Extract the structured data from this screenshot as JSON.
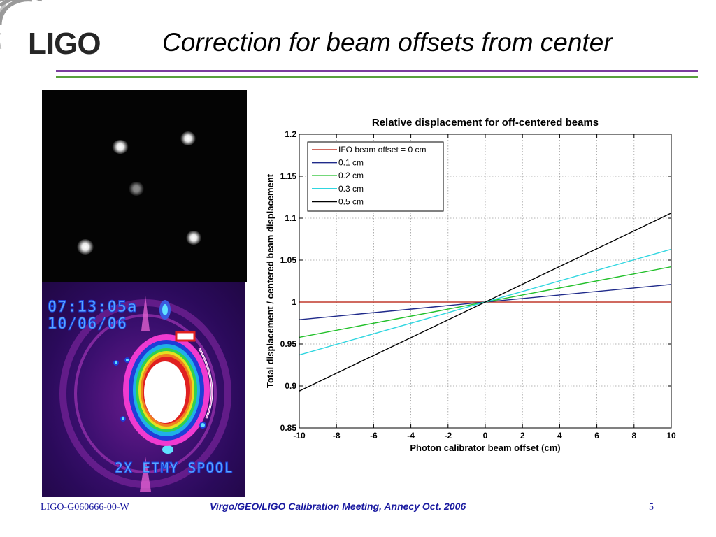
{
  "header": {
    "logo_text": "LIGO",
    "title": "Correction for beam offsets from center"
  },
  "images": {
    "camera": {
      "description_icon": "beam-spots-image"
    },
    "thermal": {
      "time": "07:13:05a",
      "date": "10/06/06",
      "label": "2X ETMY SPOOL"
    }
  },
  "chart_data": {
    "type": "line",
    "title": "Relative displacement for off-centered beams",
    "xlabel": "Photon calibrator beam offset (cm)",
    "ylabel": "Total displacement / centered beam displacement",
    "xlim": [
      -10,
      10
    ],
    "ylim": [
      0.85,
      1.2
    ],
    "xticks": [
      "-10",
      "-8",
      "-6",
      "-4",
      "-2",
      "0",
      "2",
      "4",
      "6",
      "8",
      "10"
    ],
    "yticks": [
      "0.85",
      "0.9",
      "0.95",
      "1",
      "1.05",
      "1.1",
      "1.15",
      "1.2"
    ],
    "grid": true,
    "legend_position": "top-left",
    "series": [
      {
        "name": "IFO beam offset = 0 cm",
        "color": "#c0392b",
        "x": [
          -10,
          10
        ],
        "y": [
          1.0,
          1.0
        ]
      },
      {
        "name": "0.1 cm",
        "color": "#1f2a8a",
        "x": [
          -10,
          10
        ],
        "y": [
          0.979,
          1.021
        ]
      },
      {
        "name": "0.2 cm",
        "color": "#22c02a",
        "x": [
          -10,
          10
        ],
        "y": [
          0.958,
          1.042
        ]
      },
      {
        "name": "0.3 cm",
        "color": "#2fd6e0",
        "x": [
          -10,
          10
        ],
        "y": [
          0.937,
          1.063
        ]
      },
      {
        "name": "0.5 cm",
        "color": "#000000",
        "x": [
          -10,
          10
        ],
        "y": [
          0.894,
          1.106
        ]
      }
    ]
  },
  "footer": {
    "doc_id": "LIGO-G060666-00-W",
    "meeting": "Virgo/GEO/LIGO Calibration Meeting, Annecy Oct. 2006",
    "page_number": "5"
  }
}
